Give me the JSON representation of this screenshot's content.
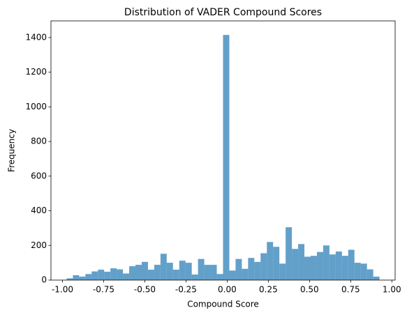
{
  "chart_data": {
    "type": "histogram",
    "title": "Distribution of VADER Compound Scores",
    "x_label": "Compound Score",
    "y_label": "Frequency",
    "bins": [
      -0.975,
      -0.937,
      -0.899,
      -0.861,
      -0.823,
      -0.785,
      -0.747,
      -0.709,
      -0.671,
      -0.633,
      -0.595,
      -0.557,
      -0.519,
      -0.481,
      -0.443,
      -0.405,
      -0.367,
      -0.329,
      -0.291,
      -0.253,
      -0.215,
      -0.177,
      -0.139,
      -0.101,
      -0.063,
      -0.025,
      0.013,
      0.051,
      0.089,
      0.127,
      0.165,
      0.203,
      0.241,
      0.279,
      0.317,
      0.355,
      0.393,
      0.431,
      0.469,
      0.507,
      0.545,
      0.583,
      0.621,
      0.659,
      0.697,
      0.735,
      0.773,
      0.811,
      0.849,
      0.887,
      0.925
    ],
    "values": [
      10,
      28,
      20,
      35,
      50,
      60,
      48,
      68,
      62,
      38,
      80,
      88,
      105,
      60,
      88,
      152,
      100,
      60,
      112,
      100,
      32,
      122,
      88,
      88,
      35,
      1415,
      55,
      122,
      65,
      128,
      105,
      155,
      220,
      192,
      95,
      305,
      180,
      208,
      135,
      140,
      162,
      200,
      148,
      165,
      140,
      175,
      100,
      95,
      62,
      20
    ],
    "color": "#1f77b4",
    "alpha": 0.7,
    "xlim": [
      -1.07,
      1.02
    ],
    "ylim": [
      0,
      1496
    ],
    "xticks": [
      {
        "value": -1,
        "label": "-1.00"
      },
      {
        "value": -0.75,
        "label": "-0.75"
      },
      {
        "value": -0.5,
        "label": "-0.50"
      },
      {
        "value": -0.25,
        "label": "-0.25"
      },
      {
        "value": 0,
        "label": "0.00"
      },
      {
        "value": 0.25,
        "label": "0.25"
      },
      {
        "value": 0.5,
        "label": "0.50"
      },
      {
        "value": 0.75,
        "label": "0.75"
      },
      {
        "value": 1,
        "label": "1.00"
      }
    ],
    "yticks": [
      0,
      200,
      400,
      600,
      800,
      1000,
      1200,
      1400
    ]
  }
}
